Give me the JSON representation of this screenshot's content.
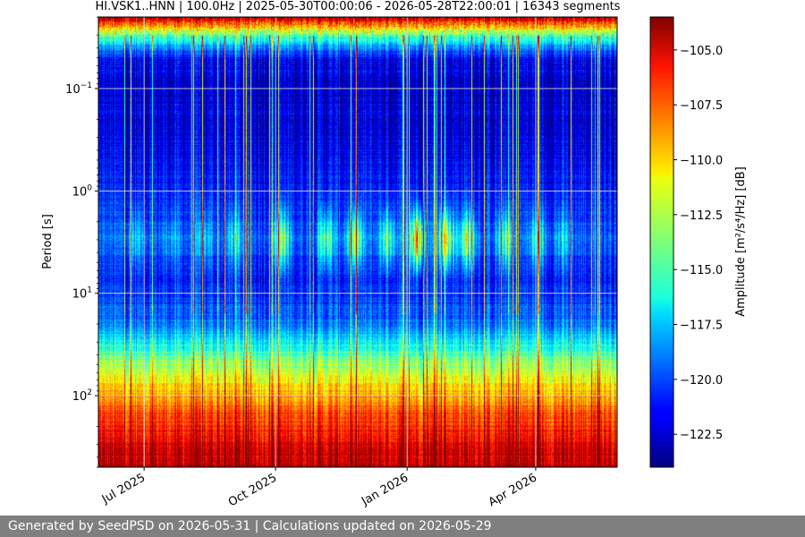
{
  "chart_data": {
    "type": "heatmap",
    "title": "HI.VSK1..HNN | 100.0Hz | 2025-05-30T00:00:06 - 2026-05-28T22:00:01 | 16343 segments",
    "xlabel": "",
    "ylabel": "Period [s]",
    "x_range": [
      "2025-05-30",
      "2026-05-28"
    ],
    "x_ticks": [
      {
        "date": "2025-07-01",
        "label": "Jul 2025"
      },
      {
        "date": "2025-10-01",
        "label": "Oct 2025"
      },
      {
        "date": "2026-01-01",
        "label": "Jan 2026"
      },
      {
        "date": "2026-04-01",
        "label": "Apr 2026"
      }
    ],
    "y_scale": "log",
    "y_axis_inverted": true,
    "y_range": [
      0.02,
      500
    ],
    "y_ticks": [
      {
        "value": 0.1,
        "base": "10",
        "exp": "−1"
      },
      {
        "value": 1,
        "base": "10",
        "exp": "0"
      },
      {
        "value": 10,
        "base": "10",
        "exp": "1"
      },
      {
        "value": 100,
        "base": "10",
        "exp": "2"
      }
    ],
    "grid": true,
    "colormap": "jet",
    "colorbar": {
      "label": "Amplitude [m²/s⁴/Hz] [dB]",
      "range": [
        -124,
        -103.5
      ],
      "ticks": [
        {
          "value": -105.0,
          "label": "−105.0"
        },
        {
          "value": -107.5,
          "label": "−107.5"
        },
        {
          "value": -110.0,
          "label": "−110.0"
        },
        {
          "value": -112.5,
          "label": "−112.5"
        },
        {
          "value": -115.0,
          "label": "−115.0"
        },
        {
          "value": -117.5,
          "label": "−117.5"
        },
        {
          "value": -120.0,
          "label": "−120.0"
        },
        {
          "value": -122.5,
          "label": "−122.5"
        }
      ]
    },
    "period_profile_db": [
      {
        "period": 0.02,
        "db": -104.5
      },
      {
        "period": 0.03,
        "db": -114.5
      },
      {
        "period": 0.05,
        "db": -121.5
      },
      {
        "period": 0.1,
        "db": -122.5
      },
      {
        "period": 0.3,
        "db": -122.0
      },
      {
        "period": 1,
        "db": -121.0
      },
      {
        "period": 3,
        "db": -119.5
      },
      {
        "period": 7,
        "db": -121.0
      },
      {
        "period": 20,
        "db": -119.0
      },
      {
        "period": 40,
        "db": -114.5
      },
      {
        "period": 80,
        "db": -110.5
      },
      {
        "period": 150,
        "db": -107.5
      },
      {
        "period": 300,
        "db": -105.5
      },
      {
        "period": 500,
        "db": -104.5
      }
    ],
    "noise_bursts": [
      {
        "date": "2025-06-25",
        "period": 3,
        "db": -116
      },
      {
        "date": "2025-07-20",
        "period": 3,
        "db": -117
      },
      {
        "date": "2025-08-12",
        "period": 3,
        "db": -116
      },
      {
        "date": "2025-09-02",
        "period": 3,
        "db": -115
      },
      {
        "date": "2025-10-05",
        "period": 3,
        "db": -111
      },
      {
        "date": "2025-11-05",
        "period": 3,
        "db": -112
      },
      {
        "date": "2025-11-25",
        "period": 3,
        "db": -110
      },
      {
        "date": "2025-12-18",
        "period": 3,
        "db": -112
      },
      {
        "date": "2026-01-08",
        "period": 3,
        "db": -106
      },
      {
        "date": "2026-01-28",
        "period": 3,
        "db": -109
      },
      {
        "date": "2026-02-12",
        "period": 3,
        "db": -110
      },
      {
        "date": "2026-03-10",
        "period": 3,
        "db": -113
      },
      {
        "date": "2026-04-02",
        "period": 3,
        "db": -114
      },
      {
        "date": "2026-04-20",
        "period": 3,
        "db": -116
      }
    ]
  },
  "footer": {
    "text": "Generated by SeedPSD on 2026-05-31 | Calculations updated on 2026-05-29"
  }
}
